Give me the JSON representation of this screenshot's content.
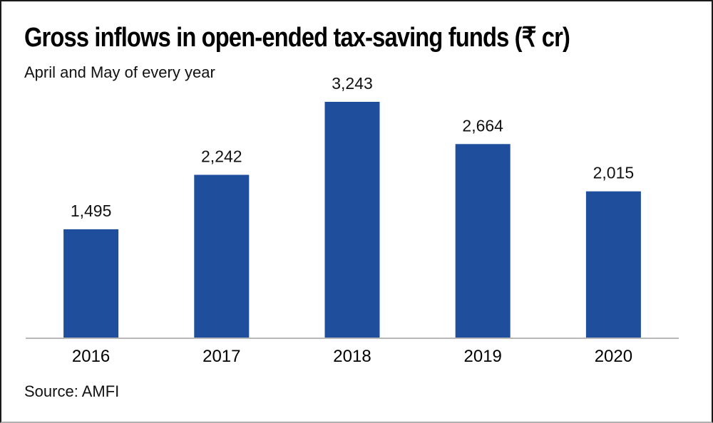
{
  "chart_data": {
    "type": "bar",
    "title": "Gross inflows in open-ended tax-saving funds (₹ cr)",
    "subtitle": "April and May of every year",
    "source": "Source: AMFI",
    "categories": [
      "2016",
      "2017",
      "2018",
      "2019",
      "2020"
    ],
    "values": [
      1495,
      2242,
      3243,
      2664,
      2015
    ],
    "value_labels": [
      "1,495",
      "2,242",
      "3,243",
      "2,664",
      "2,015"
    ],
    "xlabel": "",
    "ylabel": "",
    "ylim": [
      0,
      3500
    ],
    "grid": false,
    "bar_color": "#1f4e9c",
    "axis_color": "#b8b8b8"
  }
}
